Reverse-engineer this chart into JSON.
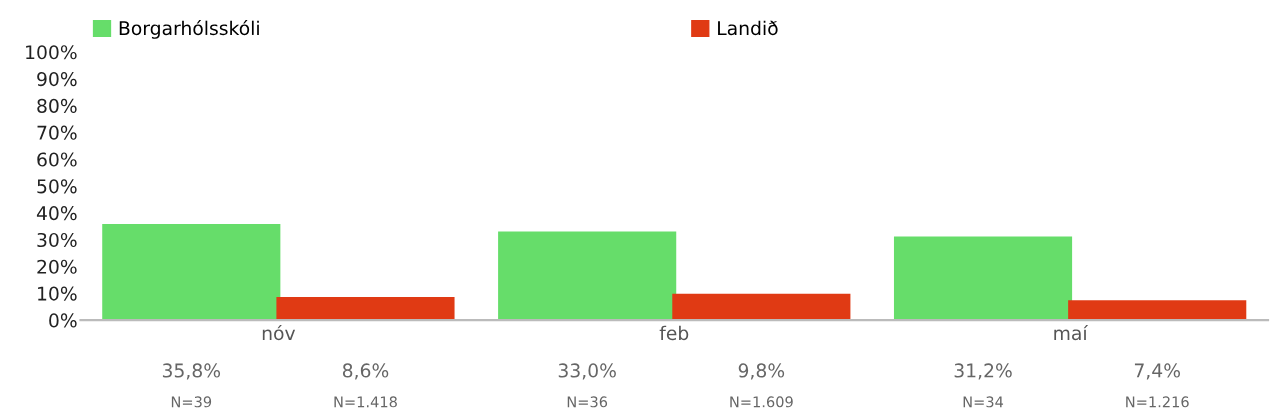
{
  "chart_data": {
    "type": "bar",
    "categories": [
      "nóv",
      "feb",
      "maí"
    ],
    "series": [
      {
        "name": "Borgarhólsskóli",
        "color": "#66dd6a",
        "values": [
          35.8,
          33.0,
          31.2
        ],
        "value_labels": [
          "35,8%",
          "33,0%",
          "31,2%"
        ]
      },
      {
        "name": "Landið",
        "color": "#e03a14",
        "values": [
          8.6,
          9.8,
          7.4
        ],
        "value_labels": [
          "8,6%",
          "9,8%",
          "7,4%"
        ]
      }
    ],
    "annotations": [
      "N=39",
      "N=36",
      "N=34",
      "N=1.418",
      "N=1.609",
      "N=1.216"
    ],
    "ylim": [
      0,
      100
    ],
    "yticks": [
      {
        "value": 0,
        "label": "0%"
      },
      {
        "value": 10,
        "label": "10%"
      },
      {
        "value": 20,
        "label": "20%"
      },
      {
        "value": 30,
        "label": "30%"
      },
      {
        "value": 40,
        "label": "40%"
      },
      {
        "value": 50,
        "label": "50%"
      },
      {
        "value": 60,
        "label": "60%"
      },
      {
        "value": 70,
        "label": "70%"
      },
      {
        "value": 80,
        "label": "80%"
      },
      {
        "value": 90,
        "label": "90%"
      },
      {
        "value": 100,
        "label": "100%"
      }
    ],
    "grid": false,
    "legend": "top"
  }
}
